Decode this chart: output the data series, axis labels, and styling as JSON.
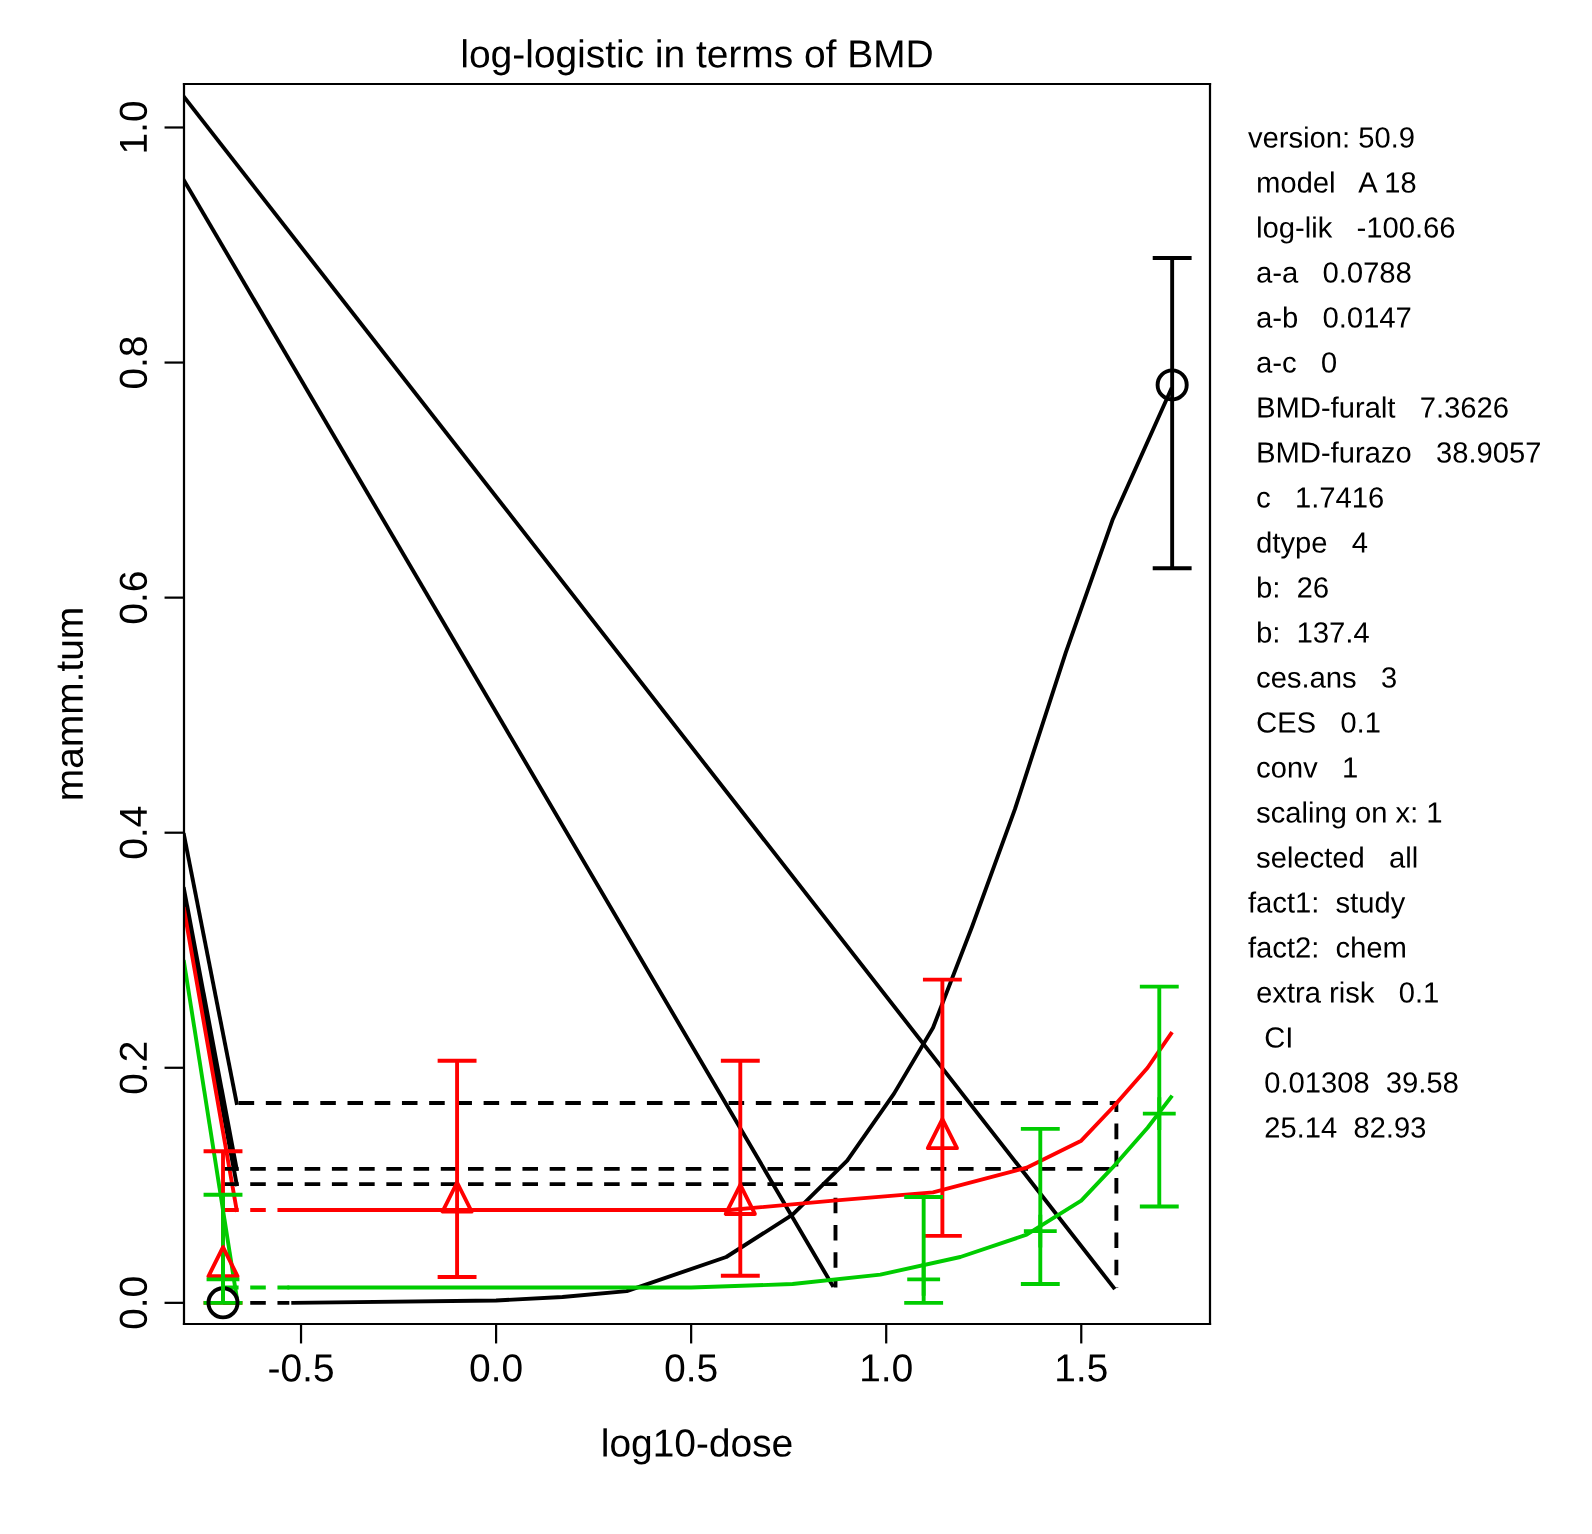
{
  "chart_data": {
    "type": "line",
    "title": "log-logistic in terms of BMD",
    "xlabel": "log10-dose",
    "ylabel": "mamm.tum",
    "xlim": [
      -0.8,
      1.83
    ],
    "ylim": [
      -0.018,
      1.037
    ],
    "xticks": [
      {
        "value": -0.5,
        "label": "-0.5"
      },
      {
        "value": 0.0,
        "label": "0.0"
      },
      {
        "value": 0.5,
        "label": "0.5"
      },
      {
        "value": 1.0,
        "label": "1.0"
      },
      {
        "value": 1.5,
        "label": "1.5"
      }
    ],
    "yticks": [
      {
        "value": 0.0,
        "label": "0.0"
      },
      {
        "value": 0.2,
        "label": "0.2"
      },
      {
        "value": 0.4,
        "label": "0.4"
      },
      {
        "value": 0.6,
        "label": "0.6"
      },
      {
        "value": 0.8,
        "label": "0.8"
      },
      {
        "value": 1.0,
        "label": "1.0"
      }
    ],
    "grid": false,
    "series": [
      {
        "color": "#000000",
        "line_style": "solid",
        "x": [
          -0.8,
          1.583
        ],
        "values": [
          1.026,
          0.013
        ]
      },
      {
        "color": "#000000",
        "line_style": "solid",
        "x": [
          -0.8,
          0.862
        ],
        "values": [
          0.955,
          0.015
        ]
      },
      {
        "color": "#000000",
        "line_style": "solid",
        "x": [
          -0.8,
          -0.665
        ],
        "values": [
          0.398,
          0.17
        ]
      },
      {
        "color": "#000000",
        "line_style": "solid",
        "x": [
          -0.8,
          -0.665
        ],
        "values": [
          0.352,
          0.114
        ]
      },
      {
        "color": "#000000",
        "line_style": "solid",
        "x": [
          -0.8,
          -0.665
        ],
        "values": [
          0.34,
          0.101
        ]
      },
      {
        "color": "#ff0000",
        "line_style": "solid",
        "x": [
          -0.8,
          -0.665
        ],
        "values": [
          0.335,
          0.079
        ]
      },
      {
        "color": "#00cc00",
        "line_style": "solid",
        "x": [
          -0.8,
          -0.665
        ],
        "values": [
          0.29,
          0.005
        ]
      },
      {
        "color": "#000000",
        "line_style": "dashed",
        "x": [
          -0.66,
          1.59,
          1.59
        ],
        "values": [
          0.17,
          0.17,
          0.013
        ]
      },
      {
        "color": "#000000",
        "line_style": "dashed",
        "x": [
          -0.7,
          1.59
        ],
        "values": [
          0.114,
          0.114
        ]
      },
      {
        "color": "#000000",
        "line_style": "dashed",
        "x": [
          -0.7,
          0.87,
          0.87
        ],
        "values": [
          0.101,
          0.101,
          0.013
        ]
      },
      {
        "color": "#000000",
        "line_style": "dashed",
        "x": [
          -0.7,
          -0.53
        ],
        "values": [
          0.0,
          0.0
        ]
      },
      {
        "color": "#ff0000",
        "line_style": "dashed",
        "x": [
          -0.7,
          -0.53
        ],
        "values": [
          0.079,
          0.079
        ]
      },
      {
        "color": "#00cc00",
        "line_style": "dashed",
        "x": [
          -0.7,
          -0.53
        ],
        "values": [
          0.013,
          0.013
        ]
      },
      {
        "color": "#000000",
        "line_style": "solid",
        "x": [
          -0.52,
          0.0,
          0.17,
          0.335,
          0.59,
          0.76,
          0.9,
          1.02,
          1.12,
          1.22,
          1.33,
          1.46,
          1.58,
          1.73
        ],
        "values": [
          0.0,
          0.002,
          0.005,
          0.01,
          0.039,
          0.075,
          0.121,
          0.178,
          0.234,
          0.32,
          0.42,
          0.553,
          0.666,
          0.777
        ]
      },
      {
        "color": "#ff0000",
        "line_style": "solid",
        "x": [
          -0.53,
          0.6,
          0.865,
          1.12,
          1.36,
          1.5,
          1.58,
          1.67,
          1.73
        ],
        "values": [
          0.079,
          0.079,
          0.087,
          0.094,
          0.115,
          0.138,
          0.166,
          0.2,
          0.229
        ]
      },
      {
        "color": "#00cc00",
        "line_style": "solid",
        "x": [
          -0.53,
          0.5,
          0.76,
          0.985,
          1.19,
          1.36,
          1.5,
          1.58,
          1.67,
          1.73
        ],
        "values": [
          0.013,
          0.013,
          0.016,
          0.024,
          0.039,
          0.058,
          0.087,
          0.115,
          0.149,
          0.175
        ]
      },
      {
        "type": "scatter",
        "color": "#000000",
        "marker": "circle",
        "x": [
          -0.7,
          1.733
        ],
        "values": [
          0.0,
          0.781
        ],
        "errors": [
          null,
          [
            0.625,
            0.889
          ]
        ]
      },
      {
        "type": "scatter",
        "color": "#ff0000",
        "marker": "triangle",
        "x": [
          -0.7,
          -0.1,
          0.626,
          1.144
        ],
        "values": [
          0.035,
          0.09,
          0.088,
          0.144
        ],
        "errors": [
          [
            0.0,
            0.129
          ],
          [
            0.022,
            0.206
          ],
          [
            0.023,
            0.206
          ],
          [
            0.057,
            0.275
          ]
        ]
      },
      {
        "type": "scatter",
        "color": "#00cc00",
        "marker": "cross",
        "x": [
          -0.7,
          1.096,
          1.395,
          1.7
        ],
        "values": [
          0.02,
          0.02,
          0.061,
          0.161
        ],
        "errors": [
          [
            0.0,
            0.092
          ],
          [
            0.0,
            0.09
          ],
          [
            0.016,
            0.148
          ],
          [
            0.082,
            0.269
          ]
        ]
      }
    ],
    "annotations": [
      "version: 50.9",
      " model   A 18",
      " log-lik   -100.66",
      " a-a   0.0788",
      " a-b   0.0147",
      " a-c   0",
      " BMD-furalt   7.3626",
      " BMD-furazo   38.9057",
      " c   1.7416",
      " dtype   4",
      " b:  26",
      " b:  137.4",
      " ces.ans   3",
      " CES   0.1",
      " conv   1",
      " scaling on x: 1",
      " selected   all",
      "fact1:  study",
      "fact2:  chem",
      " extra risk   0.1",
      "  CI",
      "  0.01308  39.58",
      "  25.14  82.93"
    ]
  }
}
